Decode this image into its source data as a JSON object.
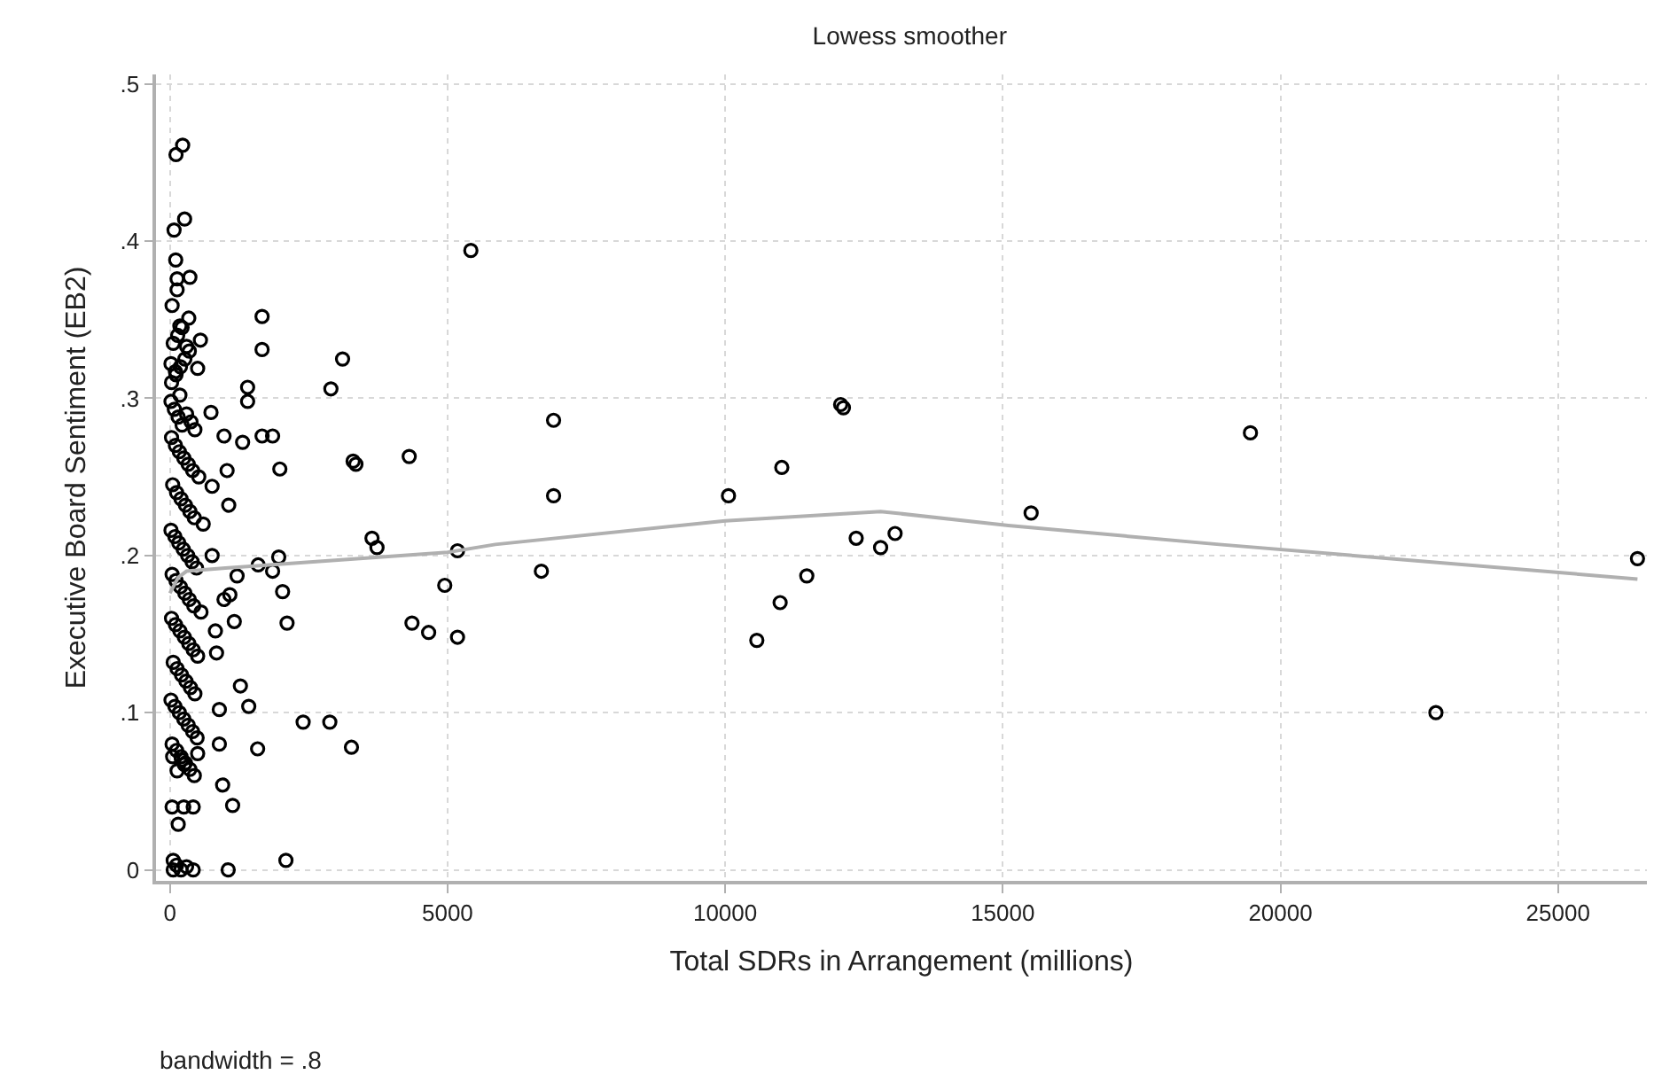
{
  "chart_data": {
    "type": "scatter",
    "title": "Lowess smoother",
    "xlabel": "Total SDRs in Arrangement (millions)",
    "ylabel": "Executive Board Sentiment (EB2)",
    "annotations": [
      "bandwidth = .8"
    ],
    "xlim": [
      -250,
      26600
    ],
    "ylim": [
      -0.007,
      0.506
    ],
    "xticks": [
      0,
      5000,
      10000,
      15000,
      20000,
      25000
    ],
    "yticks": [
      {
        "value": 0,
        "label": "0"
      },
      {
        "value": 0.1,
        "label": ".1"
      },
      {
        "value": 0.2,
        "label": ".2"
      },
      {
        "value": 0.3,
        "label": ".3"
      },
      {
        "value": 0.4,
        "label": ".4"
      },
      {
        "value": 0.5,
        "label": ".5"
      }
    ],
    "grid": true,
    "series": [
      {
        "marker": "circle",
        "color": "#000000",
        "x": [
          5420,
          1660,
          1660,
          3110,
          2900,
          1400,
          1400,
          740,
          975,
          1310,
          1660,
          1850,
          1980,
          3300,
          3350,
          4310,
          1030,
          760,
          1060,
          760,
          1590,
          1960,
          1850,
          1210,
          3640,
          3730,
          5180,
          4950,
          2030,
          4360,
          4660,
          5180,
          2110,
          1160,
          820,
          1080,
          975,
          840,
          1270,
          1420,
          890,
          890,
          1580,
          500,
          2400,
          2880,
          3270,
          950,
          1130,
          420,
          2090,
          1050,
          230,
          110,
          265,
          75,
          105,
          360,
          130,
          130,
          40,
          340,
          180,
          550,
          500,
          40,
          150,
          250,
          60,
          120,
          200,
          300,
          420,
          60,
          6910,
          6910,
          6690,
          10060,
          11020,
          12130,
          12080,
          12360,
          12800,
          13060,
          11470,
          10990,
          10570,
          15510,
          19460,
          22800,
          26430,
          20,
          80,
          150,
          220,
          300,
          380,
          450,
          30,
          100,
          170,
          250,
          330,
          410,
          520,
          50,
          120,
          200,
          280,
          360,
          440,
          600,
          20,
          90,
          160,
          240,
          320,
          400,
          480,
          40,
          110,
          190,
          270,
          350,
          430,
          560,
          30,
          100,
          180,
          260,
          340,
          420,
          500,
          60,
          130,
          210,
          290,
          370,
          450,
          20,
          90,
          170,
          250,
          330,
          410,
          490,
          40,
          120,
          200,
          280,
          360,
          440,
          30,
          110,
          190,
          270,
          350,
          60,
          140,
          220,
          300,
          20,
          100,
          180,
          260,
          50,
          130,
          210
        ],
        "values": [
          0.394,
          0.352,
          0.331,
          0.325,
          0.306,
          0.307,
          0.298,
          0.291,
          0.276,
          0.272,
          0.276,
          0.276,
          0.255,
          0.26,
          0.258,
          0.263,
          0.254,
          0.244,
          0.232,
          0.2,
          0.194,
          0.199,
          0.19,
          0.187,
          0.211,
          0.205,
          0.203,
          0.181,
          0.177,
          0.157,
          0.151,
          0.148,
          0.157,
          0.158,
          0.152,
          0.175,
          0.172,
          0.138,
          0.117,
          0.104,
          0.102,
          0.08,
          0.077,
          0.074,
          0.094,
          0.094,
          0.078,
          0.054,
          0.041,
          0.04,
          0.006,
          0.0,
          0.461,
          0.455,
          0.414,
          0.407,
          0.388,
          0.377,
          0.376,
          0.369,
          0.359,
          0.351,
          0.346,
          0.337,
          0.319,
          0.04,
          0.029,
          0.04,
          0.0,
          0.003,
          0.0,
          0.002,
          0.0,
          0.006,
          0.286,
          0.238,
          0.19,
          0.238,
          0.256,
          0.294,
          0.296,
          0.211,
          0.205,
          0.214,
          0.187,
          0.17,
          0.146,
          0.227,
          0.278,
          0.1,
          0.198,
          0.298,
          0.293,
          0.288,
          0.283,
          0.29,
          0.285,
          0.28,
          0.275,
          0.27,
          0.266,
          0.262,
          0.258,
          0.254,
          0.25,
          0.245,
          0.24,
          0.236,
          0.232,
          0.228,
          0.224,
          0.22,
          0.216,
          0.212,
          0.208,
          0.204,
          0.2,
          0.196,
          0.192,
          0.188,
          0.184,
          0.18,
          0.176,
          0.172,
          0.168,
          0.164,
          0.16,
          0.156,
          0.152,
          0.148,
          0.144,
          0.14,
          0.136,
          0.132,
          0.128,
          0.124,
          0.12,
          0.116,
          0.112,
          0.108,
          0.104,
          0.1,
          0.096,
          0.092,
          0.088,
          0.084,
          0.08,
          0.076,
          0.072,
          0.068,
          0.064,
          0.06,
          0.31,
          0.315,
          0.32,
          0.325,
          0.33,
          0.335,
          0.34,
          0.345,
          0.333,
          0.322,
          0.317,
          0.302,
          0.067,
          0.072,
          0.063,
          0.07
        ]
      },
      {
        "type": "line",
        "color": "#b0b0b0",
        "line_style": "solid",
        "marker": "none",
        "x": [
          0,
          150,
          300,
          1000,
          5000,
          5860,
          10000,
          12800,
          15100,
          18900,
          26430
        ],
        "values": [
          0.176,
          0.186,
          0.19,
          0.192,
          0.202,
          0.207,
          0.222,
          0.228,
          0.219,
          0.207,
          0.185
        ]
      }
    ]
  }
}
